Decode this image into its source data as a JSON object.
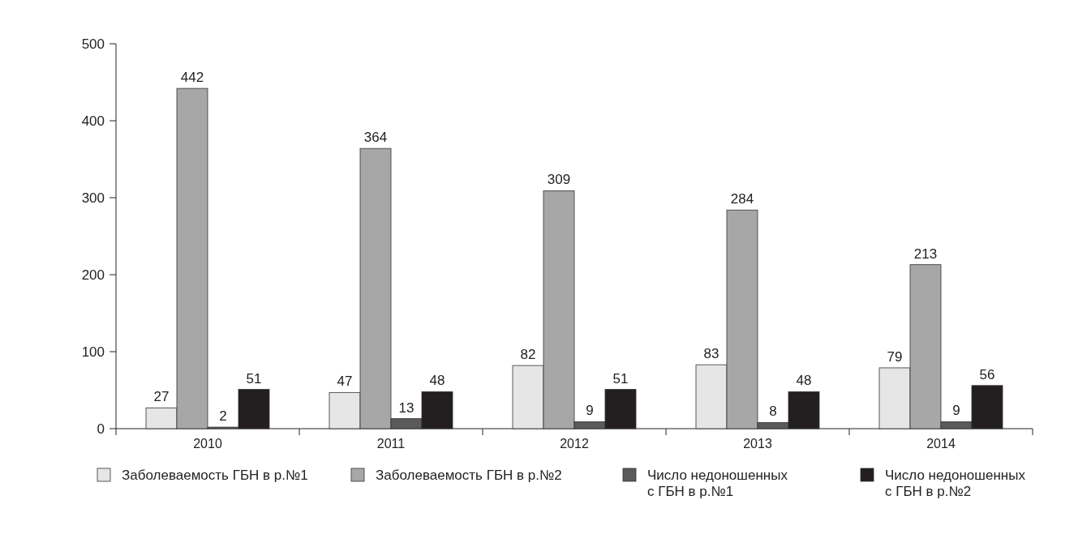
{
  "chart_data": {
    "type": "bar",
    "categories": [
      "2010",
      "2011",
      "2012",
      "2013",
      "2014"
    ],
    "series": [
      {
        "name": "Заболеваемость ГБН в р.№1",
        "color": "#e6e6e6",
        "values": [
          27,
          47,
          82,
          83,
          79
        ]
      },
      {
        "name": "Заболеваемость ГБН в р.№2",
        "color": "#a7a7a7",
        "values": [
          442,
          364,
          309,
          284,
          213
        ]
      },
      {
        "name": "Число недоношенных с ГБН в р.№1",
        "color": "#5a5a5a",
        "values": [
          2,
          13,
          9,
          8,
          9
        ]
      },
      {
        "name": "Число недоношенных с ГБН в р.№2",
        "color": "#231f20",
        "values": [
          51,
          48,
          51,
          48,
          56
        ]
      }
    ],
    "ylim": [
      0,
      500
    ],
    "yticks": [
      0,
      100,
      200,
      300,
      400,
      500
    ],
    "data_labels": true,
    "grid": false,
    "legend": "bottom"
  }
}
